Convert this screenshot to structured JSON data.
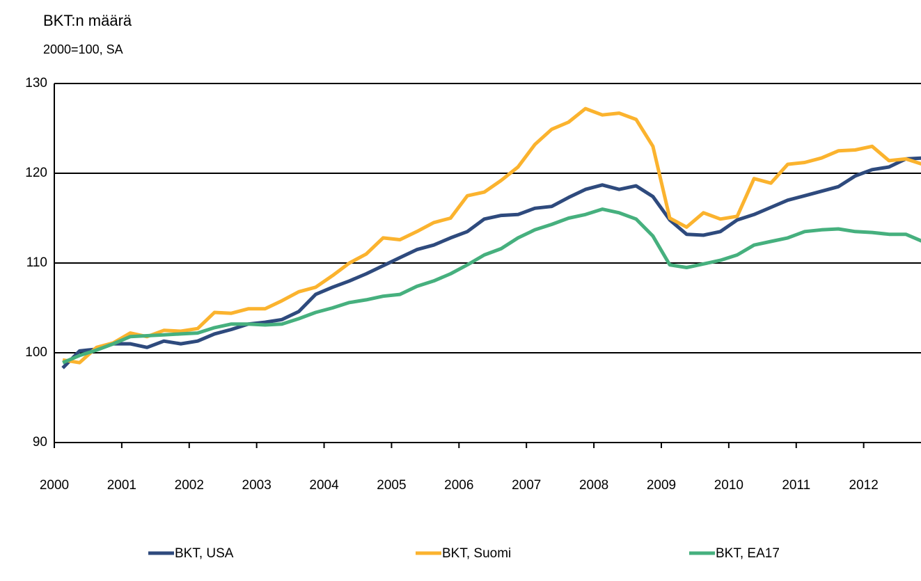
{
  "chart_data": {
    "type": "line",
    "title": "BKT:n määrä",
    "subtitle": "2000=100, SA",
    "x": [
      2000.125,
      2000.375,
      2000.625,
      2000.875,
      2001.125,
      2001.375,
      2001.625,
      2001.875,
      2002.125,
      2002.375,
      2002.625,
      2002.875,
      2003.125,
      2003.375,
      2003.625,
      2003.875,
      2004.125,
      2004.375,
      2004.625,
      2004.875,
      2005.125,
      2005.375,
      2005.625,
      2005.875,
      2006.125,
      2006.375,
      2006.625,
      2006.875,
      2007.125,
      2007.375,
      2007.625,
      2007.875,
      2008.125,
      2008.375,
      2008.625,
      2008.875,
      2009.125,
      2009.375,
      2009.625,
      2009.875,
      2010.125,
      2010.375,
      2010.625,
      2010.875,
      2011.125,
      2011.375,
      2011.625,
      2011.875,
      2012.125,
      2012.375,
      2012.625,
      2012.875
    ],
    "series": [
      {
        "name": "BKT, USA",
        "color": "#2e4a7d",
        "values": [
          98.3,
          100.2,
          100.4,
          101.0,
          101.0,
          100.6,
          101.3,
          101.0,
          101.3,
          102.1,
          102.6,
          103.2,
          103.4,
          103.7,
          104.6,
          106.5,
          107.3,
          108.0,
          108.8,
          109.7,
          110.6,
          111.5,
          112.0,
          112.8,
          113.5,
          114.9,
          115.3,
          115.4,
          116.1,
          116.3,
          117.3,
          118.2,
          118.7,
          118.2,
          118.6,
          117.4,
          114.8,
          113.2,
          113.1,
          113.5,
          114.8,
          115.4,
          116.2,
          117.0,
          117.5,
          118.0,
          118.5,
          119.7,
          120.4,
          120.7,
          121.6,
          121.7
        ]
      },
      {
        "name": "BKT, Suomi",
        "color": "#fbb32e",
        "values": [
          99.2,
          98.9,
          100.6,
          101.1,
          102.2,
          101.8,
          102.5,
          102.4,
          102.7,
          104.5,
          104.4,
          104.9,
          104.9,
          105.8,
          106.8,
          107.3,
          108.6,
          110.0,
          111.0,
          112.8,
          112.6,
          113.5,
          114.5,
          115.0,
          117.5,
          117.9,
          119.2,
          120.7,
          123.2,
          124.9,
          125.7,
          127.2,
          126.5,
          126.7,
          126.0,
          123.0,
          115.0,
          114.0,
          115.6,
          114.9,
          115.2,
          119.4,
          118.9,
          121.0,
          121.2,
          121.7,
          122.5,
          122.6,
          123.0,
          121.4,
          121.6,
          121.0
        ]
      },
      {
        "name": "BKT, EA17",
        "color": "#46b07e",
        "values": [
          98.9,
          99.7,
          100.3,
          101.0,
          101.8,
          101.9,
          102.0,
          102.1,
          102.2,
          102.8,
          103.2,
          103.2,
          103.1,
          103.2,
          103.8,
          104.5,
          105.0,
          105.6,
          105.9,
          106.3,
          106.5,
          107.4,
          108.0,
          108.8,
          109.8,
          110.9,
          111.6,
          112.8,
          113.7,
          114.3,
          115.0,
          115.4,
          116.0,
          115.6,
          114.9,
          113.0,
          109.8,
          109.5,
          109.9,
          110.3,
          110.9,
          112.0,
          112.4,
          112.8,
          113.5,
          113.7,
          113.8,
          113.5,
          113.4,
          113.2,
          113.2,
          112.4
        ]
      }
    ],
    "xlim": [
      2000,
      2012.85
    ],
    "xticks": [
      2000,
      2001,
      2002,
      2003,
      2004,
      2005,
      2006,
      2007,
      2008,
      2009,
      2010,
      2011,
      2012
    ],
    "ylim": [
      90,
      130
    ],
    "yticks": [
      90,
      100,
      110,
      120,
      130
    ],
    "grid": true,
    "legend": "bottom"
  }
}
